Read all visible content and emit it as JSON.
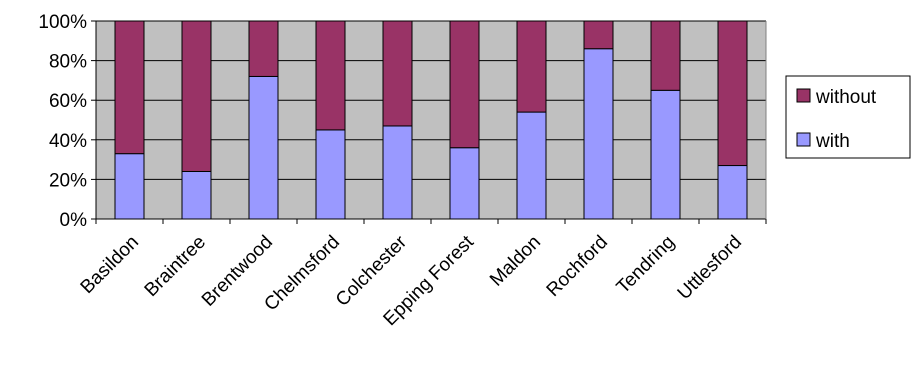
{
  "chart_data": {
    "type": "bar",
    "stacked": true,
    "percent_stacked": true,
    "categories": [
      "Basildon",
      "Braintree",
      "Brentwood",
      "Chelmsford",
      "Colchester",
      "Epping Forest",
      "Maldon",
      "Rochford",
      "Tendring",
      "Uttlesford"
    ],
    "series": [
      {
        "name": "with",
        "values": [
          33,
          24,
          72,
          45,
          47,
          36,
          54,
          86,
          65,
          27
        ],
        "color": "#9999ff"
      },
      {
        "name": "without",
        "values": [
          67,
          76,
          28,
          55,
          53,
          64,
          46,
          14,
          35,
          73
        ],
        "color": "#993366"
      }
    ],
    "y_ticks": [
      "0%",
      "20%",
      "40%",
      "60%",
      "80%",
      "100%"
    ],
    "ylim": [
      0,
      100
    ],
    "grid": true,
    "plot_background": "#c0c0c0",
    "legend": {
      "position": "right",
      "order": [
        "without",
        "with"
      ]
    },
    "title": "",
    "xlabel": "",
    "ylabel": ""
  }
}
